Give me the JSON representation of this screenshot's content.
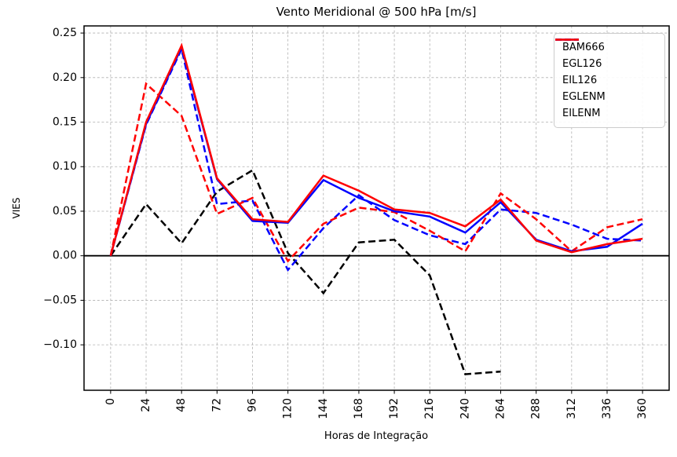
{
  "chart_data": {
    "type": "line",
    "title": "Vento Meridional @ 500 hPa [m/s]",
    "xlabel": "Horas de Integração",
    "ylabel": "VIES",
    "grid": true,
    "zero_line": true,
    "legend_position": "upper right",
    "xlim": [
      -18,
      378
    ],
    "ylim": [
      -0.151,
      0.258
    ],
    "x": [
      0,
      24,
      48,
      72,
      96,
      120,
      144,
      168,
      192,
      216,
      240,
      264,
      288,
      312,
      336,
      360
    ],
    "xtick_labels": [
      "0",
      "24",
      "48",
      "72",
      "96",
      "120",
      "144",
      "168",
      "192",
      "216",
      "240",
      "264",
      "288",
      "312",
      "336",
      "360"
    ],
    "yticks": [
      0.25,
      0.2,
      0.15,
      0.1,
      0.05,
      0.0,
      -0.05,
      -0.1
    ],
    "ytick_labels": [
      "0.25",
      "0.20",
      "0.15",
      "0.10",
      "0.05",
      "0.00",
      "−0.05",
      "−0.10"
    ],
    "series": [
      {
        "name": "BAM666",
        "color": "#000000",
        "style": "dashed",
        "values": [
          0.0,
          0.058,
          0.014,
          0.072,
          0.096,
          0.003,
          -0.042,
          0.015,
          0.018,
          -0.022,
          -0.133,
          -0.13,
          null,
          null,
          null,
          null
        ]
      },
      {
        "name": "EGL126",
        "color": "#0000ff",
        "style": "dashed",
        "values": [
          0.0,
          0.147,
          0.232,
          0.058,
          0.062,
          -0.016,
          0.031,
          0.068,
          0.04,
          0.023,
          0.013,
          0.052,
          0.048,
          0.035,
          0.019,
          0.017
        ]
      },
      {
        "name": "EIL126",
        "color": "#ff0000",
        "style": "dashed",
        "values": [
          0.0,
          0.193,
          0.157,
          0.047,
          0.065,
          -0.006,
          0.036,
          0.054,
          0.049,
          0.028,
          0.005,
          0.07,
          0.041,
          0.005,
          0.032,
          0.041
        ]
      },
      {
        "name": "EGLENM",
        "color": "#0000ff",
        "style": "solid",
        "values": [
          0.0,
          0.148,
          0.234,
          0.086,
          0.039,
          0.037,
          0.085,
          0.065,
          0.05,
          0.044,
          0.026,
          0.06,
          0.018,
          0.005,
          0.01,
          0.036
        ]
      },
      {
        "name": "EILENM",
        "color": "#ff0000",
        "style": "solid",
        "values": [
          0.0,
          0.15,
          0.236,
          0.087,
          0.041,
          0.038,
          0.09,
          0.073,
          0.052,
          0.048,
          0.033,
          0.063,
          0.017,
          0.004,
          0.013,
          0.019
        ]
      }
    ],
    "colors": {
      "grid": "#b0b0b0",
      "axis": "#000000",
      "background": "#ffffff"
    }
  }
}
